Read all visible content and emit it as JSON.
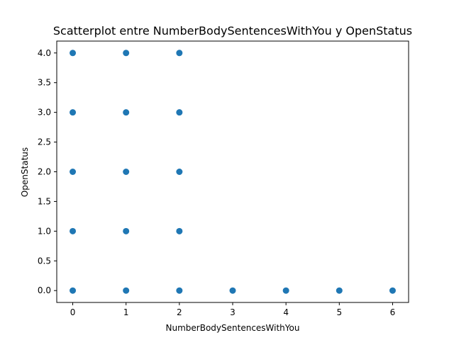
{
  "chart_data": {
    "type": "scatter",
    "title": "Scatterplot entre NumberBodySentencesWithYou y OpenStatus",
    "xlabel": "NumberBodySentencesWithYou",
    "ylabel": "OpenStatus",
    "xlim": [
      -0.3,
      6.3
    ],
    "ylim": [
      -0.2,
      4.2
    ],
    "xticks": [
      0,
      1,
      2,
      3,
      4,
      5,
      6
    ],
    "xtick_labels": [
      "0",
      "1",
      "2",
      "3",
      "4",
      "5",
      "6"
    ],
    "yticks": [
      0,
      0.5,
      1,
      1.5,
      2,
      2.5,
      3,
      3.5,
      4
    ],
    "ytick_labels": [
      "0.0",
      "0.5",
      "1.0",
      "1.5",
      "2.0",
      "2.5",
      "3.0",
      "3.5",
      "4.0"
    ],
    "grid": false,
    "marker_color": "#1f77b4",
    "points": [
      {
        "x": 0,
        "y": 4
      },
      {
        "x": 1,
        "y": 4
      },
      {
        "x": 2,
        "y": 4
      },
      {
        "x": 0,
        "y": 3
      },
      {
        "x": 1,
        "y": 3
      },
      {
        "x": 2,
        "y": 3
      },
      {
        "x": 0,
        "y": 2
      },
      {
        "x": 1,
        "y": 2
      },
      {
        "x": 2,
        "y": 2
      },
      {
        "x": 0,
        "y": 1
      },
      {
        "x": 1,
        "y": 1
      },
      {
        "x": 2,
        "y": 1
      },
      {
        "x": 0,
        "y": 0
      },
      {
        "x": 1,
        "y": 0
      },
      {
        "x": 2,
        "y": 0
      },
      {
        "x": 3,
        "y": 0
      },
      {
        "x": 4,
        "y": 0
      },
      {
        "x": 5,
        "y": 0
      },
      {
        "x": 6,
        "y": 0
      }
    ]
  }
}
